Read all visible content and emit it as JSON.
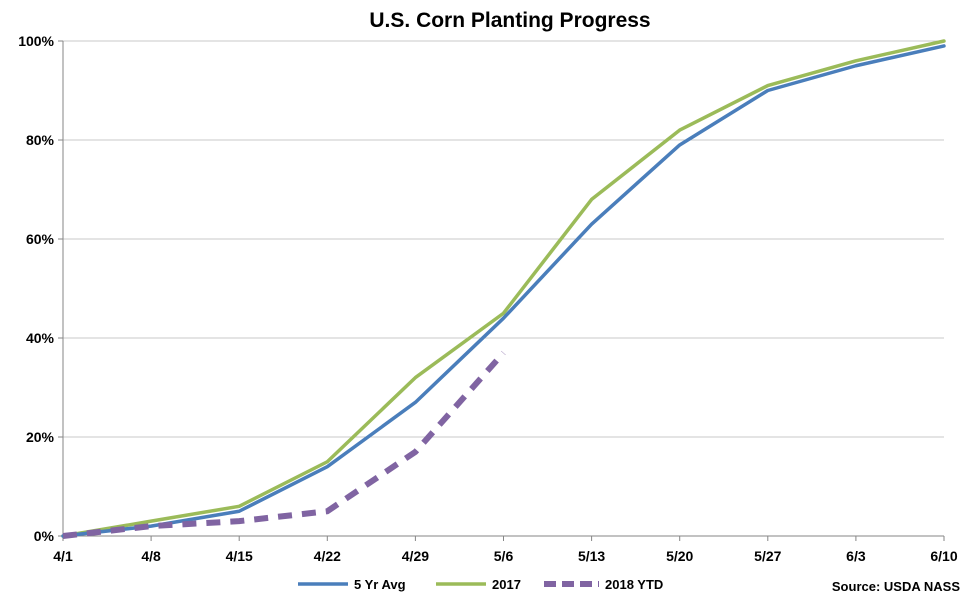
{
  "chart_data": {
    "type": "line",
    "title": "U.S. Corn Planting Progress",
    "categories": [
      "4/1",
      "4/8",
      "4/15",
      "4/22",
      "4/29",
      "5/6",
      "5/13",
      "5/20",
      "5/27",
      "6/3",
      "6/10"
    ],
    "yticks": [
      "0%",
      "20%",
      "40%",
      "60%",
      "80%",
      "100%"
    ],
    "ylim": [
      0,
      100
    ],
    "grid": true,
    "legend_position": "bottom",
    "series": [
      {
        "name": "5 Yr Avg",
        "color": "#4a7ebb",
        "style": "solid",
        "values": [
          0,
          2,
          5,
          14,
          27,
          44,
          63,
          79,
          90,
          95,
          99
        ]
      },
      {
        "name": "2017",
        "color": "#9bbb59",
        "style": "solid",
        "values": [
          0,
          3,
          6,
          15,
          32,
          45,
          68,
          82,
          91,
          96,
          100
        ]
      },
      {
        "name": "2018 YTD",
        "color": "#8064a2",
        "style": "dashed",
        "values": [
          0,
          2,
          3,
          5,
          17,
          37,
          null,
          null,
          null,
          null,
          null
        ]
      }
    ],
    "source": "Source: USDA NASS"
  }
}
